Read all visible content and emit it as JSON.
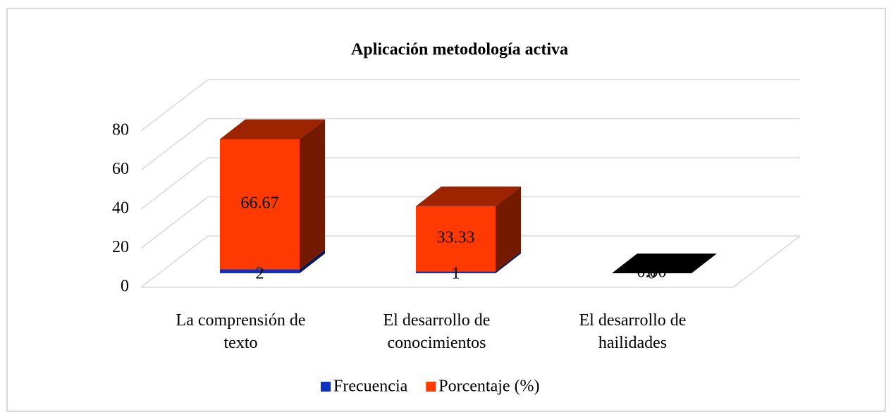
{
  "chart_data": {
    "type": "bar3d_stacked",
    "title": "Aplicación metodología activa",
    "categories": [
      "La comprensión de texto",
      "El desarrollo de conocimientos",
      "El desarrollo de hailidades"
    ],
    "series": [
      {
        "name": "Frecuencia",
        "color": "#1030c0",
        "values": [
          2,
          1,
          0
        ]
      },
      {
        "name": "Porcentaje (%)",
        "color": "#ff3a00",
        "values": [
          66.67,
          33.33,
          0
        ],
        "value_labels": [
          "66.67",
          "33.33",
          "0.00"
        ]
      }
    ],
    "ylim": [
      0,
      80
    ],
    "yticks": [
      0,
      20,
      40,
      60,
      80
    ],
    "grid": true,
    "legend": "bottom"
  }
}
